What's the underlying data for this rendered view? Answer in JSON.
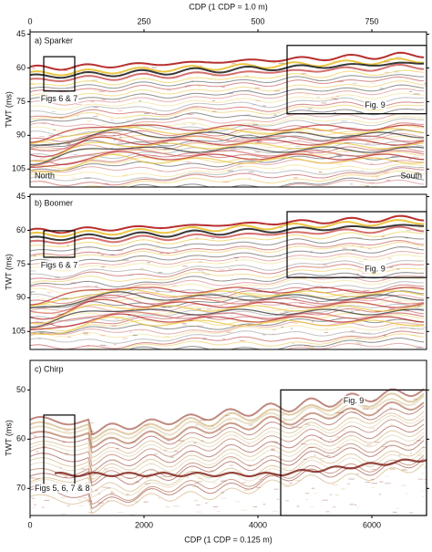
{
  "chart_data": [
    {
      "type": "seismic",
      "panel_label": "a) Sparker",
      "left_note": "North",
      "right_note": "South",
      "ylabel": "TWT (ms)",
      "ylim": [
        44,
        113
      ],
      "yticks": [
        45,
        60,
        75,
        90,
        105
      ],
      "xlabel": "CDP (1 CDP = 1.0 m)",
      "xlim": [
        0,
        870
      ],
      "xticks": [
        0,
        250,
        500,
        750
      ],
      "annotations": [
        {
          "text": "Figs 6 & 7",
          "x": [
            30,
            98
          ],
          "y": [
            55,
            70.3
          ]
        },
        {
          "text": "Fig. 9",
          "x": [
            564,
            870
          ],
          "y": [
            50,
            80.4
          ]
        }
      ]
    },
    {
      "type": "seismic",
      "panel_label": "b) Boomer",
      "ylabel": "TWT (ms)",
      "ylim": [
        44,
        113
      ],
      "yticks": [
        45,
        60,
        75,
        90,
        105
      ],
      "xlim": [
        0,
        870
      ],
      "annotations": [
        {
          "text": "Figs 6 & 7",
          "x": [
            30,
            98
          ],
          "y": [
            60.2,
            72
          ]
        },
        {
          "text": "Fig. 9",
          "x": [
            564,
            870
          ],
          "y": [
            51.7,
            81
          ]
        }
      ]
    },
    {
      "type": "seismic",
      "panel_label": "c) Chirp",
      "ylabel": "TWT (ms)",
      "ylim": [
        44,
        75.5
      ],
      "yticks": [
        50,
        60,
        70
      ],
      "xlabel": "CDP (1 CDP = 0.125 m)",
      "xlim": [
        0,
        6960
      ],
      "xticks": [
        0,
        2000,
        4000,
        6000
      ],
      "annotations": [
        {
          "text": "Figs 5, 6, 7 & 8",
          "x": [
            240,
            784
          ],
          "y": [
            55.1,
            70.1
          ]
        },
        {
          "text": "Fig. 9",
          "x": [
            4400,
            6960
          ],
          "y": [
            50,
            75.5
          ]
        }
      ]
    }
  ]
}
